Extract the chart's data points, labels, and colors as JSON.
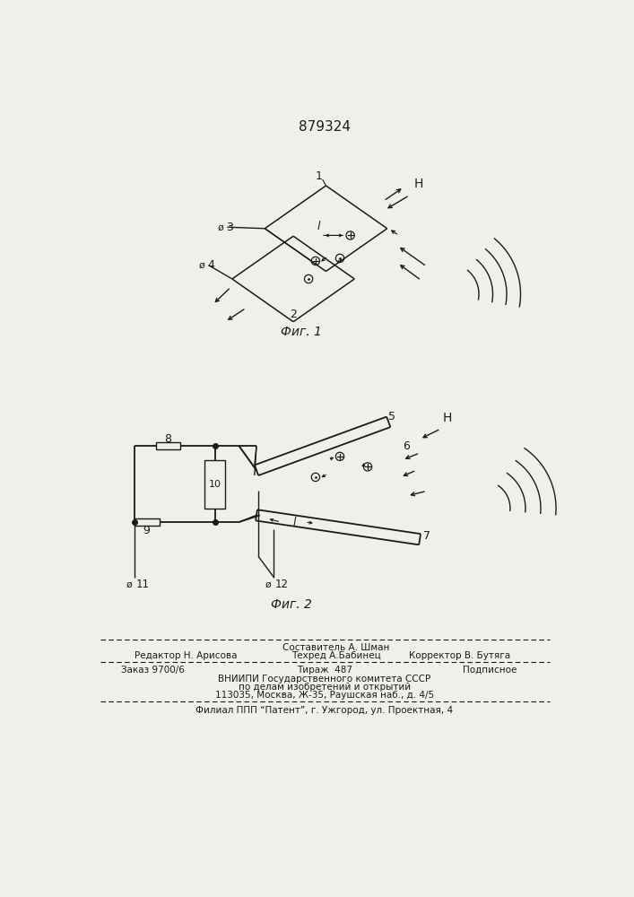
{
  "title": "879324",
  "bg_color": "#f0f0eb",
  "line_color": "#1a1a1a",
  "fig1_caption": "Фиг. 1",
  "fig2_caption": "Фиг. 2",
  "footer_row1_center": "Составитель А. Шман",
  "footer_row2_left": "Редактор Н. Арисова",
  "footer_row2_center": "Техред А.Бабинец",
  "footer_row2_right": "Корректор В. Бутяга",
  "footer_row3_left": "Заказ 9700/6",
  "footer_row3_center": "Тираж  487",
  "footer_row3_right": "Подписное",
  "footer_row4": "ВНИИПИ Государственного комитета СССР",
  "footer_row5": "по делам изобретений и открытий",
  "footer_row6": "113035, Москва, Ж-35, Раушская наб., д. 4/5",
  "last_line": "Филиал ППП “Патент”, г. Ужгород, ул. Проектная, 4"
}
